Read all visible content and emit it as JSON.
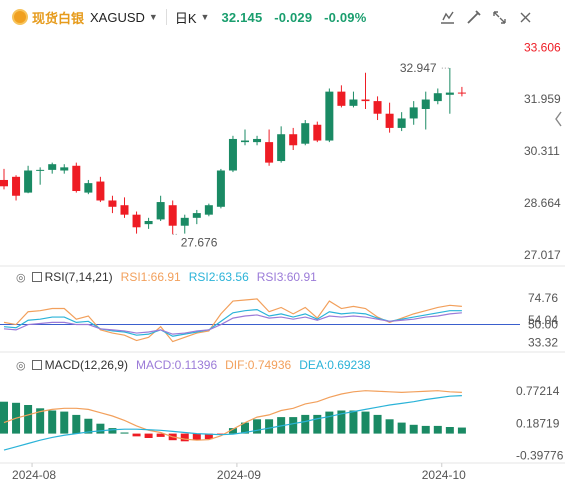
{
  "header": {
    "brand": "现货白银",
    "symbol": "XAGUSD",
    "period": "日K",
    "price": "32.145",
    "change": "-0.029",
    "change_pct": "-0.09%"
  },
  "colors": {
    "up": "#1a8a64",
    "down": "#ee1c24",
    "rsi1": "#f2a05c",
    "rsi2": "#2bb3d8",
    "rsi3": "#9b7bd8",
    "dif": "#f2a05c",
    "dea": "#2bb3d8",
    "baseline": "#3a5fcd"
  },
  "icons": [
    "logo-coin-icon",
    "indicator-settings-icon",
    "draw-line-icon",
    "fullscreen-icon",
    "close-icon",
    "collapse-arrow-icon"
  ],
  "price_axis": [
    "33.606",
    "31.959",
    "30.311",
    "28.664",
    "27.017"
  ],
  "rsi_axis": [
    "74.76",
    "54.04",
    "50.00",
    "33.32"
  ],
  "macd_axis": [
    "0.77214",
    "0.18719",
    "-0.39776"
  ],
  "time_axis": [
    "2024-08",
    "2024-09",
    "2024-10"
  ],
  "rsi_header": {
    "name": "RSI(7,14,21)",
    "rsi1": "RSI1:66.91",
    "rsi2": "RSI2:63.56",
    "rsi3": "RSI3:60.91"
  },
  "macd_header": {
    "name": "MACD(12,26,9)",
    "macd": "MACD:0.11396",
    "dif": "DIF:0.74936",
    "dea": "DEA:0.69238"
  },
  "annotations": {
    "high": "32.947",
    "low": "27.676"
  },
  "chart_data": [
    {
      "type": "candlestick",
      "name": "price",
      "ylim": [
        26.8,
        33.9
      ],
      "candles": [
        {
          "o": 29.4,
          "h": 29.75,
          "l": 29.1,
          "c": 29.2
        },
        {
          "o": 29.5,
          "h": 29.55,
          "l": 28.75,
          "c": 28.9
        },
        {
          "o": 29.0,
          "h": 29.85,
          "l": 28.98,
          "c": 29.7
        },
        {
          "o": 29.7,
          "h": 29.8,
          "l": 29.25,
          "c": 29.72
        },
        {
          "o": 29.72,
          "h": 29.95,
          "l": 29.6,
          "c": 29.9
        },
        {
          "o": 29.7,
          "h": 29.9,
          "l": 29.6,
          "c": 29.8
        },
        {
          "o": 29.85,
          "h": 29.95,
          "l": 29.0,
          "c": 29.05
        },
        {
          "o": 29.0,
          "h": 29.4,
          "l": 28.95,
          "c": 29.3
        },
        {
          "o": 29.35,
          "h": 29.5,
          "l": 28.7,
          "c": 28.75
        },
        {
          "o": 28.75,
          "h": 28.9,
          "l": 28.35,
          "c": 28.55
        },
        {
          "o": 28.6,
          "h": 28.85,
          "l": 28.2,
          "c": 28.3
        },
        {
          "o": 28.3,
          "h": 28.4,
          "l": 27.7,
          "c": 27.9
        },
        {
          "o": 28.0,
          "h": 28.2,
          "l": 27.85,
          "c": 28.1
        },
        {
          "o": 28.15,
          "h": 28.9,
          "l": 28.1,
          "c": 28.7
        },
        {
          "o": 28.6,
          "h": 28.75,
          "l": 27.68,
          "c": 27.95
        },
        {
          "o": 27.95,
          "h": 28.3,
          "l": 27.7,
          "c": 28.2
        },
        {
          "o": 28.2,
          "h": 28.45,
          "l": 28.0,
          "c": 28.35
        },
        {
          "o": 28.3,
          "h": 28.65,
          "l": 28.25,
          "c": 28.6
        },
        {
          "o": 28.55,
          "h": 29.75,
          "l": 28.5,
          "c": 29.7
        },
        {
          "o": 29.7,
          "h": 30.8,
          "l": 29.65,
          "c": 30.7
        },
        {
          "o": 30.6,
          "h": 31.0,
          "l": 30.5,
          "c": 30.65
        },
        {
          "o": 30.6,
          "h": 30.8,
          "l": 30.5,
          "c": 30.7
        },
        {
          "o": 30.6,
          "h": 31.0,
          "l": 29.85,
          "c": 29.95
        },
        {
          "o": 30.0,
          "h": 31.1,
          "l": 29.95,
          "c": 30.85
        },
        {
          "o": 30.85,
          "h": 31.05,
          "l": 30.35,
          "c": 30.5
        },
        {
          "o": 30.55,
          "h": 31.3,
          "l": 30.5,
          "c": 31.2
        },
        {
          "o": 31.15,
          "h": 31.25,
          "l": 30.6,
          "c": 30.65
        },
        {
          "o": 30.65,
          "h": 32.3,
          "l": 30.6,
          "c": 32.2
        },
        {
          "o": 32.2,
          "h": 32.4,
          "l": 31.7,
          "c": 31.75
        },
        {
          "o": 31.75,
          "h": 32.2,
          "l": 31.7,
          "c": 31.95
        },
        {
          "o": 31.95,
          "h": 32.8,
          "l": 31.65,
          "c": 31.9
        },
        {
          "o": 31.9,
          "h": 32.05,
          "l": 31.3,
          "c": 31.5
        },
        {
          "o": 31.5,
          "h": 31.85,
          "l": 30.9,
          "c": 31.05
        },
        {
          "o": 31.05,
          "h": 31.55,
          "l": 30.95,
          "c": 31.35
        },
        {
          "o": 31.35,
          "h": 31.9,
          "l": 31.15,
          "c": 31.7
        },
        {
          "o": 31.65,
          "h": 32.2,
          "l": 31.0,
          "c": 31.95
        },
        {
          "o": 31.9,
          "h": 32.3,
          "l": 31.8,
          "c": 32.15
        },
        {
          "o": 32.1,
          "h": 32.95,
          "l": 31.5,
          "c": 32.17
        },
        {
          "o": 32.17,
          "h": 32.35,
          "l": 32.05,
          "c": 32.15
        }
      ],
      "axis_ticks": [
        33.606,
        31.959,
        30.311,
        28.664,
        27.017
      ],
      "high": 32.947,
      "low": 27.676
    },
    {
      "type": "line",
      "name": "rsi",
      "ylim": [
        28,
        88
      ],
      "series": [
        {
          "name": "RSI1",
          "values": [
            52,
            50,
            62,
            63,
            65,
            65,
            55,
            58,
            45,
            42,
            40,
            35,
            38,
            48,
            34,
            38,
            42,
            44,
            60,
            72,
            73,
            74,
            62,
            66,
            60,
            66,
            56,
            72,
            65,
            67,
            65,
            57,
            52,
            56,
            60,
            63,
            66,
            68,
            67
          ]
        },
        {
          "name": "RSI2",
          "values": [
            48,
            47,
            54,
            55,
            57,
            57,
            52,
            53,
            46,
            44,
            43,
            40,
            41,
            45,
            39,
            41,
            43,
            45,
            53,
            61,
            63,
            64,
            58,
            60,
            57,
            60,
            55,
            62,
            60,
            61,
            60,
            56,
            53,
            55,
            57,
            59,
            61,
            63,
            63
          ]
        },
        {
          "name": "RSI3",
          "values": [
            46,
            45,
            50,
            51,
            52,
            52,
            50,
            50,
            46,
            45,
            44,
            42,
            43,
            45,
            41,
            42,
            44,
            45,
            50,
            56,
            58,
            59,
            56,
            57,
            55,
            57,
            54,
            58,
            57,
            58,
            57,
            55,
            53,
            54,
            55,
            57,
            58,
            60,
            61
          ]
        }
      ],
      "axis_ticks": [
        74.76,
        54.04,
        50.0,
        33.32
      ],
      "baseline": 50
    },
    {
      "type": "bar+line",
      "name": "macd",
      "ylim": [
        -0.48,
        1.12
      ],
      "histogram": [
        0.58,
        0.56,
        0.52,
        0.46,
        0.42,
        0.4,
        0.34,
        0.27,
        0.18,
        0.1,
        0.02,
        -0.05,
        -0.08,
        -0.06,
        -0.12,
        -0.14,
        -0.12,
        -0.1,
        -0.02,
        0.1,
        0.2,
        0.26,
        0.26,
        0.3,
        0.3,
        0.34,
        0.34,
        0.4,
        0.42,
        0.42,
        0.4,
        0.34,
        0.26,
        0.2,
        0.16,
        0.14,
        0.14,
        0.12,
        0.11
      ],
      "series": [
        {
          "name": "DIF",
          "values": [
            0.2,
            0.28,
            0.34,
            0.4,
            0.44,
            0.46,
            0.46,
            0.44,
            0.38,
            0.32,
            0.24,
            0.14,
            0.06,
            0.02,
            -0.06,
            -0.1,
            -0.12,
            -0.11,
            -0.04,
            0.08,
            0.2,
            0.3,
            0.34,
            0.42,
            0.46,
            0.54,
            0.58,
            0.66,
            0.72,
            0.76,
            0.78,
            0.77,
            0.76,
            0.75,
            0.76,
            0.77,
            0.78,
            0.76,
            0.75
          ]
        },
        {
          "name": "DEA",
          "values": [
            -0.3,
            -0.24,
            -0.18,
            -0.12,
            -0.07,
            -0.03,
            0.0,
            0.03,
            0.05,
            0.07,
            0.08,
            0.08,
            0.07,
            0.06,
            0.04,
            0.02,
            0.0,
            -0.01,
            -0.02,
            -0.01,
            0.02,
            0.06,
            0.1,
            0.14,
            0.18,
            0.22,
            0.27,
            0.31,
            0.36,
            0.4,
            0.44,
            0.48,
            0.52,
            0.55,
            0.58,
            0.62,
            0.65,
            0.68,
            0.69
          ]
        }
      ],
      "axis_ticks": [
        0.77214,
        0.18719,
        -0.39776
      ]
    }
  ]
}
